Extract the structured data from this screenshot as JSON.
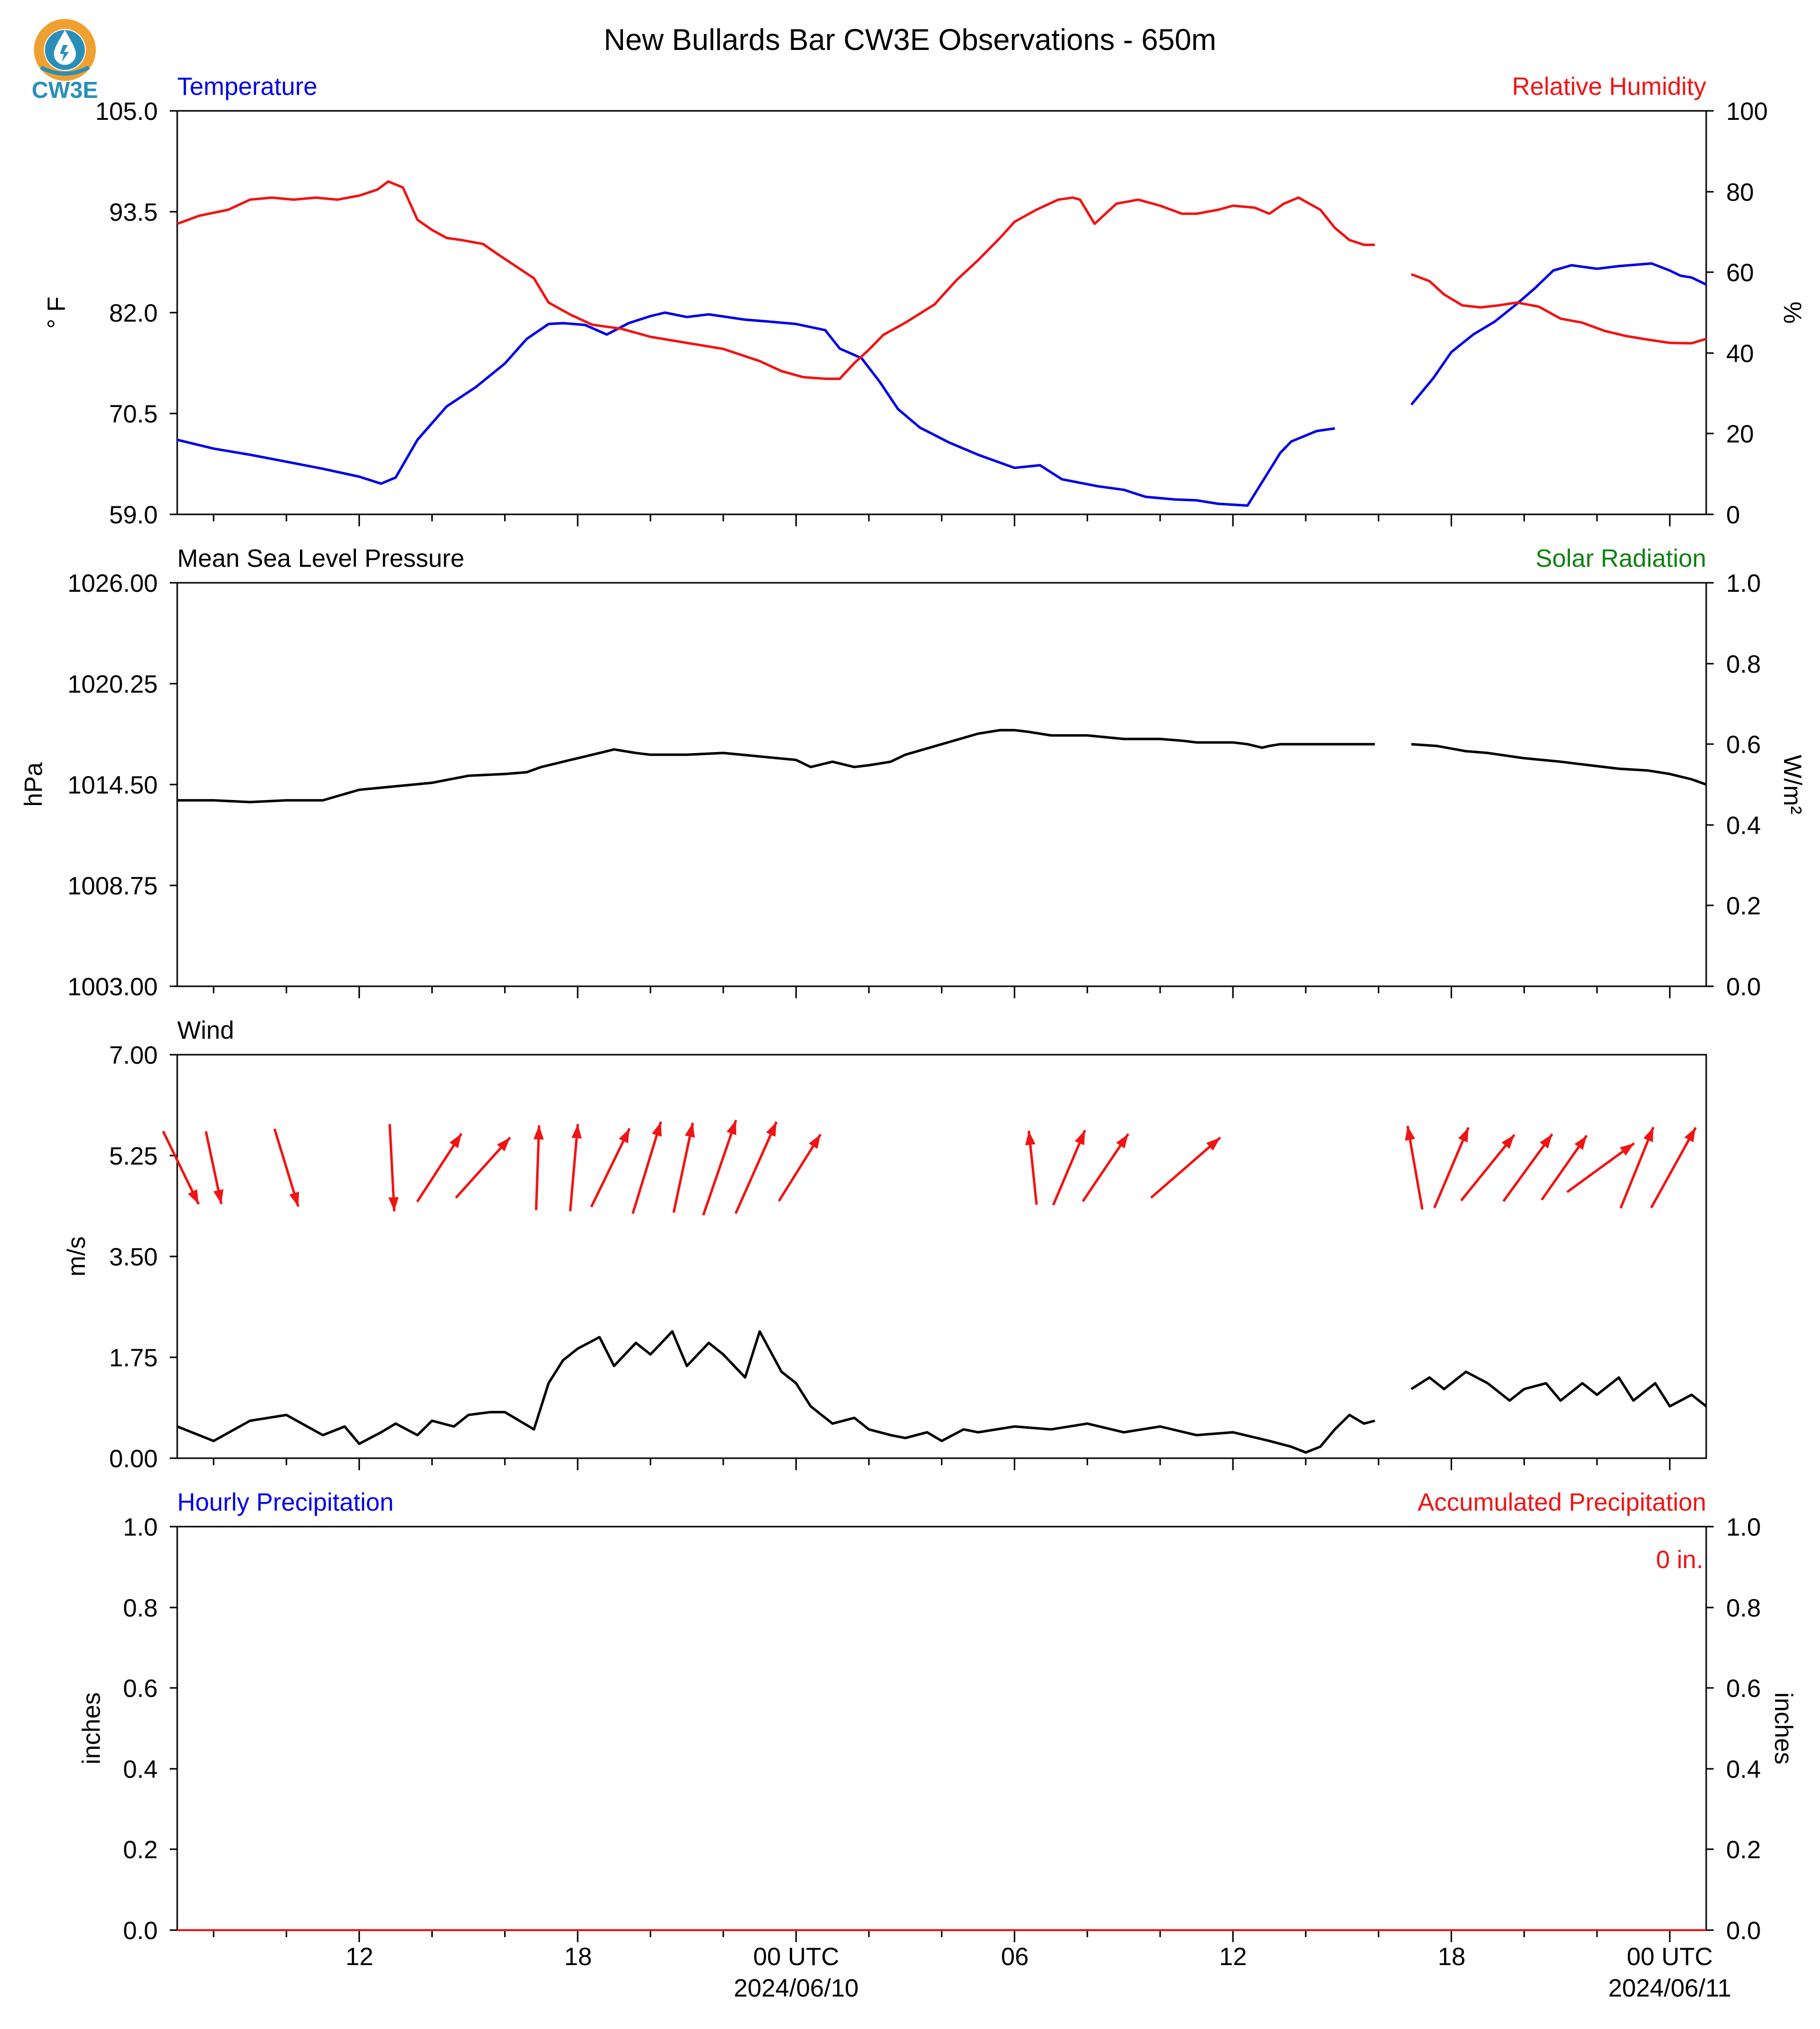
{
  "title": "New Bullards Bar CW3E Observations - 650m",
  "logo": {
    "text": "CW3E",
    "icon": "cw3e-water-drop-logo-icon",
    "ring_color": "#f0a030",
    "drop_color": "#2a8fb8"
  },
  "colors": {
    "blue": "#0000e6",
    "red": "#f01414",
    "green": "#108010",
    "black": "#000000"
  },
  "x_axis": {
    "tick_labels": [
      "12",
      "18",
      "00 UTC",
      "06",
      "12",
      "18",
      "00 UTC"
    ],
    "date_labels": [
      "2024/06/10",
      "2024/06/11"
    ]
  },
  "panels": {
    "temp_rh": {
      "left_title": "Temperature",
      "right_title": "Relative Humidity",
      "left_ylabel": "° F",
      "right_ylabel": "%",
      "left_ticks": [
        "105.0",
        "93.5",
        "82.0",
        "70.5",
        "59.0"
      ],
      "right_ticks": [
        "100",
        "80",
        "60",
        "40",
        "20",
        "0"
      ]
    },
    "pressure": {
      "left_title": "Mean Sea Level Pressure",
      "right_title": "Solar Radiation",
      "left_ylabel": "hPa",
      "right_ylabel": "W/m²",
      "left_ticks": [
        "1026.00",
        "1020.25",
        "1014.50",
        "1008.75",
        "1003.00"
      ],
      "right_ticks": [
        "1.0",
        "0.8",
        "0.6",
        "0.4",
        "0.2",
        "0.0"
      ]
    },
    "wind": {
      "left_title": "Wind",
      "left_ylabel": "m/s",
      "left_ticks": [
        "7.00",
        "5.25",
        "3.50",
        "1.75",
        "0.00"
      ]
    },
    "precip": {
      "left_title": "Hourly Precipitation",
      "right_title": "Accumulated Precipitation",
      "left_ylabel": "inches",
      "right_ylabel": "inches",
      "left_ticks": [
        "1.0",
        "0.8",
        "0.6",
        "0.4",
        "0.2",
        "0.0"
      ],
      "right_ticks": [
        "1.0",
        "0.8",
        "0.6",
        "0.4",
        "0.2",
        "0.0"
      ],
      "annotation": "0 in."
    }
  },
  "chart_data": [
    {
      "type": "line",
      "panel": "temp_rh",
      "title": "",
      "x_unit": "hours since 2024-06-09 00 UTC",
      "xlim": [
        7,
        49
      ],
      "series": [
        {
          "name": "Temperature",
          "axis": "left",
          "unit": "°F",
          "ylim": [
            59.0,
            105.0
          ],
          "color": "#0000e6",
          "x": [
            7.0,
            8,
            9,
            10,
            11,
            12,
            12.6,
            13.0,
            13.6,
            14.4,
            15.2,
            16,
            16.6,
            17.2,
            17.6,
            18.2,
            18.8,
            19.4,
            20.0,
            20.4,
            21,
            21.6,
            22.6,
            23.2,
            24,
            24.8,
            25.2,
            25.8,
            26.3,
            26.8,
            27.4,
            28.2,
            29,
            30,
            30.7,
            31.3,
            31.8,
            32.3,
            33.0,
            33.6,
            34.4,
            35,
            35.6,
            36.4,
            37.3,
            37.6,
            38.3,
            38.8,
            39.1,
            39.6,
            39.9,
            null,
            40.9,
            41.5,
            42,
            42.6,
            43.2,
            43.8,
            44.3,
            44.8,
            45.3,
            46,
            46.6,
            47.5,
            48,
            48.3,
            48.6,
            49
          ],
          "y": [
            67.5,
            66.5,
            65.8,
            65,
            64.2,
            63.3,
            62.5,
            63.2,
            67.5,
            71.3,
            73.5,
            76.2,
            79.0,
            80.7,
            80.8,
            80.6,
            79.5,
            80.8,
            81.6,
            82.0,
            81.5,
            81.8,
            81.2,
            81.0,
            80.7,
            80.0,
            77.9,
            76.8,
            74.1,
            71.0,
            68.9,
            67.2,
            65.8,
            64.3,
            64.6,
            63.0,
            62.6,
            62.2,
            61.8,
            61.0,
            60.7,
            60.6,
            60.2,
            60.0,
            66.0,
            67.3,
            68.5,
            68.8,
            null,
            null,
            null,
            null,
            71.5,
            74.5,
            77.5,
            79.5,
            81.0,
            83.0,
            84.8,
            86.8,
            87.4,
            87.0,
            87.3,
            87.6,
            86.8,
            86.2,
            86.0,
            85.2
          ]
        },
        {
          "name": "Relative Humidity",
          "axis": "right",
          "unit": "%",
          "ylim": [
            0,
            100
          ],
          "color": "#f01414",
          "x": [
            7.0,
            7.6,
            8.4,
            9,
            9.6,
            10.2,
            10.8,
            11.4,
            12,
            12.5,
            12.8,
            13.2,
            13.6,
            14.0,
            14.4,
            14.8,
            15.4,
            15.8,
            16.3,
            16.8,
            17.2,
            17.8,
            18.4,
            19.2,
            20,
            21,
            22,
            23,
            23.6,
            24.2,
            24.8,
            25.2,
            25.6,
            26.0,
            26.4,
            27,
            27.8,
            28.4,
            29,
            29.6,
            30,
            30.6,
            31.2,
            31.6,
            31.8,
            32.2,
            32.8,
            33.4,
            34.0,
            34.6,
            35.0,
            35.6,
            36,
            36.6,
            37.0,
            37.4,
            37.8,
            38.4,
            38.8,
            39.2,
            39.6,
            39.9,
            null,
            40.9,
            41.4,
            41.8,
            42.3,
            42.8,
            43.3,
            43.8,
            44.4,
            45,
            45.6,
            46.2,
            46.8,
            47.4,
            48,
            48.6,
            49
          ],
          "y": [
            72,
            74,
            75.5,
            78,
            78.5,
            78,
            78.5,
            78,
            79,
            80.5,
            82.5,
            81,
            73,
            70.5,
            68.5,
            68,
            67,
            64.5,
            61.5,
            58.5,
            52.5,
            49.5,
            47,
            46,
            44,
            42.5,
            41,
            38,
            35.5,
            34,
            33.6,
            33.6,
            37.5,
            40.8,
            44.5,
            47.5,
            52,
            58,
            63,
            68.5,
            72.5,
            75.5,
            78,
            78.5,
            78,
            72,
            77,
            78,
            76.5,
            74.5,
            74.5,
            75.5,
            76.5,
            76,
            74.5,
            77,
            78.5,
            75.5,
            71,
            68,
            66.8,
            66.8,
            null,
            59.5,
            57.8,
            54.5,
            51.8,
            51.3,
            51.8,
            52.5,
            51.5,
            48.5,
            47.5,
            45.5,
            44.2,
            43.3,
            42.5,
            42.4,
            43.5
          ]
        }
      ]
    },
    {
      "type": "line",
      "panel": "pressure",
      "title": "",
      "xlim": [
        7,
        49
      ],
      "series": [
        {
          "name": "Mean Sea Level Pressure",
          "axis": "left",
          "unit": "hPa",
          "ylim": [
            1003.0,
            1026.0
          ],
          "color": "#000000",
          "x": [
            7,
            8,
            9,
            10,
            11,
            12,
            13,
            14,
            15,
            16,
            16.6,
            17,
            17.6,
            18,
            18.6,
            19,
            19.6,
            20,
            21,
            22,
            23,
            24,
            24.4,
            25,
            25.6,
            26,
            26.6,
            27,
            28,
            29,
            29.6,
            30,
            30.4,
            31,
            32,
            33,
            34,
            34.6,
            35,
            35.8,
            36,
            36.4,
            36.8,
            37,
            37.3,
            37.8,
            38.2,
            38.8,
            39.4,
            39.9,
            null,
            40.9,
            41.6,
            42.4,
            43,
            44,
            45,
            45.8,
            46.6,
            47.4,
            48,
            48.6,
            49
          ],
          "y": [
            1013.6,
            1013.6,
            1013.5,
            1013.6,
            1013.6,
            1014.2,
            1014.4,
            1014.6,
            1015.0,
            1015.1,
            1015.2,
            1015.5,
            1015.8,
            1016.0,
            1016.3,
            1016.5,
            1016.3,
            1016.2,
            1016.2,
            1016.3,
            1016.1,
            1015.9,
            1015.5,
            1015.8,
            1015.5,
            1015.6,
            1015.8,
            1016.2,
            1016.8,
            1017.4,
            1017.6,
            1017.6,
            1017.5,
            1017.3,
            1017.3,
            1017.1,
            1017.1,
            1017.0,
            1016.9,
            1016.9,
            1016.9,
            1016.8,
            1016.6,
            1016.7,
            1016.8,
            1016.8,
            1016.8,
            1016.8,
            1016.8,
            1016.8,
            null,
            1016.8,
            1016.7,
            1016.4,
            1016.3,
            1016.0,
            1015.8,
            1015.6,
            1015.4,
            1015.3,
            1015.1,
            1014.8,
            1014.5
          ]
        },
        {
          "name": "Solar Radiation",
          "axis": "right",
          "unit": "W/m²",
          "ylim": [
            0.0,
            1.0
          ],
          "color": "#108010",
          "x": [],
          "y": []
        }
      ]
    },
    {
      "type": "line",
      "panel": "wind",
      "title": "",
      "xlim": [
        7,
        49
      ],
      "series": [
        {
          "name": "Wind speed",
          "unit": "m/s",
          "ylim": [
            0,
            7.0
          ],
          "color": "#000000",
          "x": [
            7,
            8,
            9,
            10,
            11,
            11.6,
            12,
            12.6,
            13,
            13.6,
            14,
            14.6,
            15,
            15.6,
            16,
            16.4,
            16.8,
            17.2,
            17.6,
            18,
            18.6,
            19,
            19.6,
            20,
            20.6,
            21,
            21.6,
            22,
            22.6,
            23,
            23.6,
            24,
            24.4,
            25,
            25.6,
            26,
            26.6,
            27,
            27.6,
            28,
            28.6,
            29,
            30,
            31,
            32,
            33,
            34,
            35,
            36,
            37,
            37.6,
            38,
            38.4,
            38.8,
            39.2,
            39.6,
            39.9,
            null,
            40.9,
            41.4,
            41.8,
            42.4,
            43,
            43.6,
            44,
            44.6,
            45,
            45.6,
            46,
            46.6,
            47,
            47.6,
            48,
            48.6,
            49
          ],
          "y": [
            0.55,
            0.3,
            0.65,
            0.75,
            0.4,
            0.55,
            0.25,
            0.45,
            0.6,
            0.4,
            0.65,
            0.55,
            0.75,
            0.8,
            0.8,
            0.65,
            0.5,
            1.3,
            1.7,
            1.9,
            2.1,
            1.6,
            2.0,
            1.8,
            2.2,
            1.6,
            2.0,
            1.8,
            1.4,
            2.2,
            1.5,
            1.3,
            0.9,
            0.6,
            0.7,
            0.5,
            0.4,
            0.35,
            0.45,
            0.3,
            0.5,
            0.45,
            0.55,
            0.5,
            0.6,
            0.45,
            0.55,
            0.4,
            0.45,
            0.3,
            0.2,
            0.1,
            0.2,
            0.5,
            0.75,
            0.6,
            0.65,
            null,
            1.2,
            1.4,
            1.2,
            1.5,
            1.3,
            1.0,
            1.2,
            1.3,
            1.0,
            1.3,
            1.1,
            1.4,
            1.0,
            1.3,
            0.9,
            1.1,
            0.9
          ]
        }
      ],
      "wind_vectors": {
        "color": "#f01414",
        "x": [
          7.1,
          8.0,
          10.0,
          12.9,
          14.2,
          15.4,
          16.9,
          17.9,
          18.9,
          19.9,
          20.9,
          21.9,
          22.9,
          24.1,
          30.5,
          31.5,
          32.5,
          34.7,
          41.0,
          42.0,
          43.0,
          44.1,
          45.1,
          46.1,
          47.1,
          48.1
        ],
        "from_deg": [
          334,
          348,
          343,
          357,
          213,
          222,
          182,
          185,
          206,
          197,
          192,
          199,
          204,
          212,
          174,
          203,
          214,
          229,
          170,
          203,
          219,
          216,
          215,
          234,
          202,
          209
        ],
        "length_rel": [
          0.93,
          0.85,
          0.93,
          1.0,
          0.93,
          0.93,
          0.97,
          1.0,
          1.0,
          1.1,
          1.05,
          1.15,
          1.15,
          0.9,
          0.85,
          0.93,
          0.93,
          1.05,
          0.97,
          1.0,
          0.97,
          0.95,
          0.9,
          0.95,
          1.0,
          1.05
        ]
      }
    },
    {
      "type": "line",
      "panel": "precip",
      "title": "",
      "xlim": [
        7,
        49
      ],
      "series": [
        {
          "name": "Hourly Precipitation",
          "axis": "left",
          "unit": "inches",
          "ylim": [
            0,
            1.0
          ],
          "color": "#0000e6",
          "x": [
            7,
            49
          ],
          "y": [
            0,
            0
          ]
        },
        {
          "name": "Accumulated Precipitation",
          "axis": "right",
          "unit": "inches",
          "ylim": [
            0,
            1.0
          ],
          "color": "#f01414",
          "x": [
            7,
            49
          ],
          "y": [
            0,
            0
          ]
        }
      ]
    }
  ]
}
